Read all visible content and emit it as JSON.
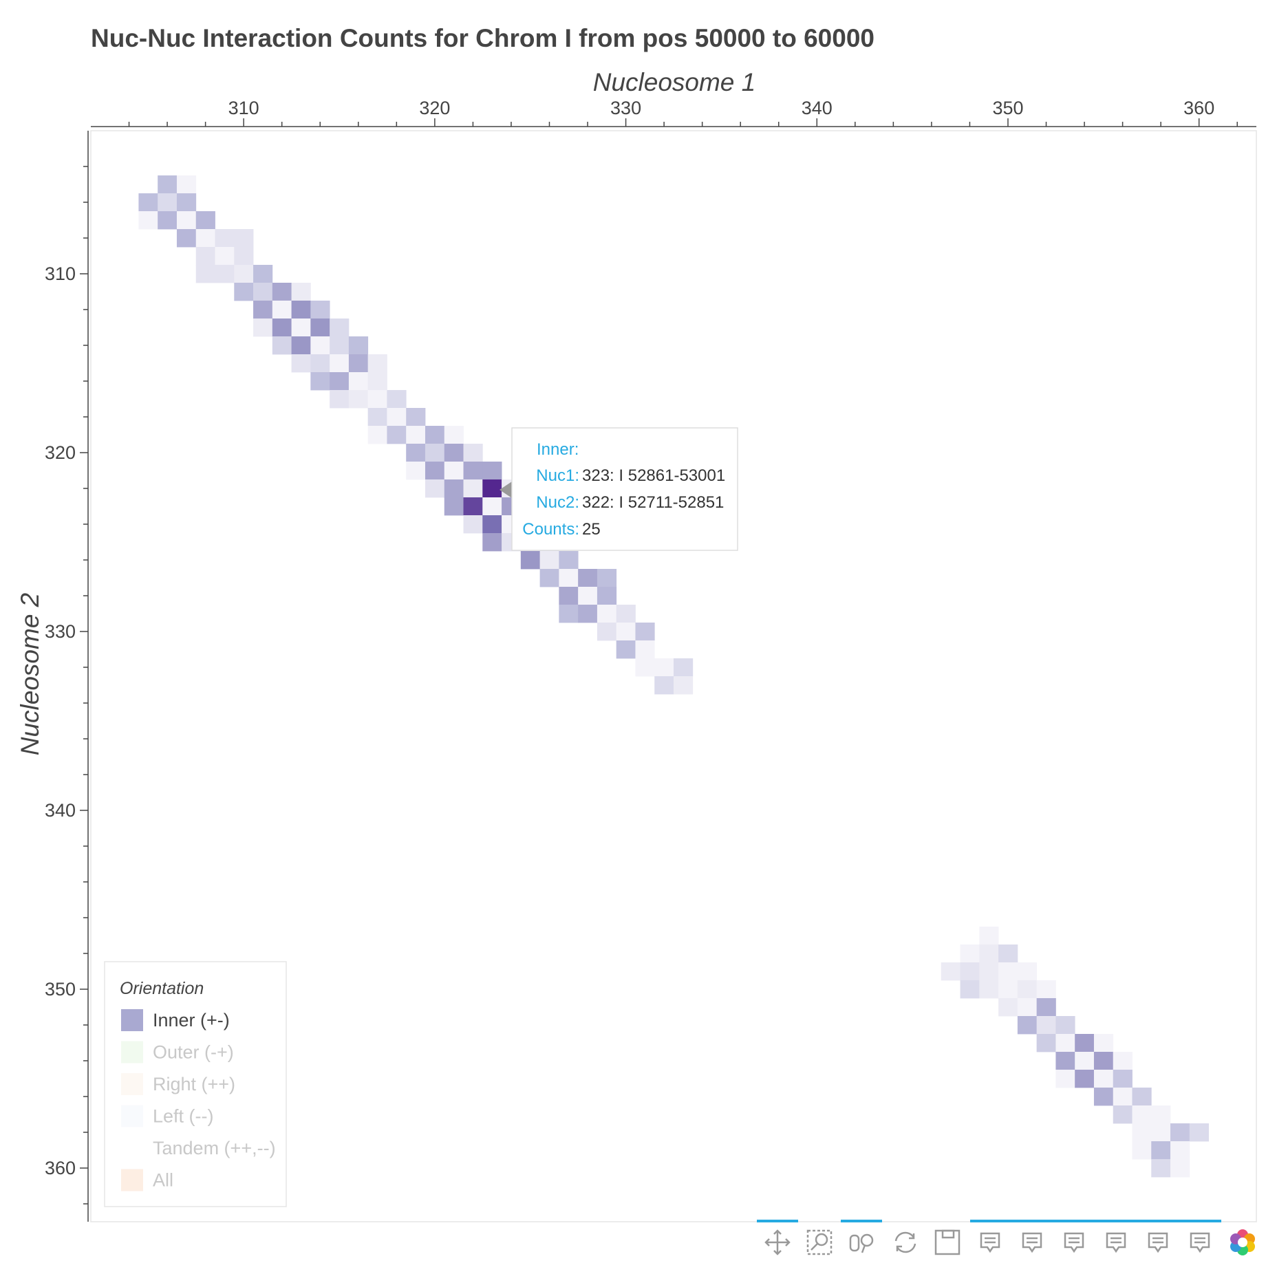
{
  "chart_data": {
    "type": "heatmap",
    "title": "Nuc-Nuc Interaction Counts for Chrom I from pos 50000 to 60000",
    "xlabel": "Nucleosome 1",
    "ylabel": "Nucleosome 2",
    "xlim": [
      302,
      363
    ],
    "ylim": [
      302,
      363
    ],
    "y_inverted": true,
    "x_axis_position": "top",
    "x_ticks": [
      "310",
      "320",
      "330",
      "340",
      "350",
      "360"
    ],
    "y_ticks": [
      "310",
      "320",
      "330",
      "340",
      "350",
      "360"
    ],
    "colormap": "purples",
    "max_count": 25,
    "cells": [
      [
        306,
        305,
        8
      ],
      [
        307,
        305,
        1
      ],
      [
        305,
        306,
        8
      ],
      [
        306,
        306,
        4
      ],
      [
        307,
        306,
        8
      ],
      [
        305,
        307,
        1
      ],
      [
        306,
        307,
        9
      ],
      [
        307,
        307,
        1
      ],
      [
        308,
        307,
        9
      ],
      [
        307,
        308,
        9
      ],
      [
        308,
        308,
        1
      ],
      [
        309,
        308,
        3
      ],
      [
        310,
        308,
        3
      ],
      [
        308,
        309,
        3
      ],
      [
        309,
        309,
        1
      ],
      [
        310,
        309,
        3
      ],
      [
        308,
        310,
        3
      ],
      [
        309,
        310,
        3
      ],
      [
        310,
        310,
        2
      ],
      [
        311,
        310,
        8
      ],
      [
        310,
        311,
        8
      ],
      [
        311,
        311,
        5
      ],
      [
        312,
        311,
        11
      ],
      [
        313,
        311,
        2
      ],
      [
        311,
        312,
        11
      ],
      [
        312,
        312,
        1
      ],
      [
        313,
        312,
        13
      ],
      [
        314,
        312,
        7
      ],
      [
        311,
        313,
        2
      ],
      [
        312,
        313,
        13
      ],
      [
        313,
        313,
        1
      ],
      [
        314,
        313,
        13
      ],
      [
        315,
        313,
        4
      ],
      [
        312,
        314,
        5
      ],
      [
        313,
        314,
        13
      ],
      [
        314,
        314,
        1
      ],
      [
        315,
        314,
        4
      ],
      [
        316,
        314,
        8
      ],
      [
        313,
        315,
        3
      ],
      [
        314,
        315,
        4
      ],
      [
        315,
        315,
        1
      ],
      [
        316,
        315,
        10
      ],
      [
        317,
        315,
        2
      ],
      [
        314,
        316,
        8
      ],
      [
        315,
        316,
        10
      ],
      [
        316,
        316,
        1
      ],
      [
        317,
        316,
        2
      ],
      [
        315,
        317,
        3
      ],
      [
        316,
        317,
        2
      ],
      [
        317,
        317,
        1
      ],
      [
        318,
        317,
        4
      ],
      [
        317,
        318,
        4
      ],
      [
        318,
        318,
        1
      ],
      [
        319,
        318,
        7
      ],
      [
        317,
        319,
        1
      ],
      [
        318,
        319,
        7
      ],
      [
        319,
        319,
        1
      ],
      [
        320,
        319,
        9
      ],
      [
        321,
        319,
        1
      ],
      [
        319,
        320,
        9
      ],
      [
        320,
        320,
        5
      ],
      [
        321,
        320,
        11
      ],
      [
        322,
        320,
        3
      ],
      [
        319,
        321,
        1
      ],
      [
        320,
        321,
        11
      ],
      [
        321,
        321,
        1
      ],
      [
        322,
        321,
        11
      ],
      [
        323,
        321,
        11
      ],
      [
        320,
        322,
        3
      ],
      [
        321,
        322,
        11
      ],
      [
        322,
        322,
        2
      ],
      [
        323,
        322,
        25
      ],
      [
        324,
        322,
        2
      ],
      [
        321,
        323,
        11
      ],
      [
        322,
        323,
        22
      ],
      [
        323,
        323,
        1
      ],
      [
        324,
        323,
        12
      ],
      [
        322,
        324,
        3
      ],
      [
        323,
        324,
        18
      ],
      [
        324,
        324,
        1
      ],
      [
        325,
        324,
        12
      ],
      [
        323,
        325,
        12
      ],
      [
        324,
        325,
        3
      ],
      [
        325,
        325,
        1
      ],
      [
        326,
        325,
        4
      ],
      [
        325,
        326,
        13
      ],
      [
        326,
        326,
        2
      ],
      [
        327,
        326,
        8
      ],
      [
        326,
        327,
        8
      ],
      [
        327,
        327,
        1
      ],
      [
        328,
        327,
        11
      ],
      [
        329,
        327,
        8
      ],
      [
        327,
        328,
        11
      ],
      [
        328,
        328,
        1
      ],
      [
        329,
        328,
        9
      ],
      [
        327,
        329,
        8
      ],
      [
        328,
        329,
        10
      ],
      [
        329,
        329,
        1
      ],
      [
        330,
        329,
        3
      ],
      [
        329,
        330,
        3
      ],
      [
        330,
        330,
        1
      ],
      [
        331,
        330,
        7
      ],
      [
        330,
        331,
        8
      ],
      [
        331,
        331,
        1
      ],
      [
        331,
        332,
        1
      ],
      [
        332,
        332,
        1
      ],
      [
        333,
        332,
        4
      ],
      [
        332,
        333,
        4
      ],
      [
        333,
        333,
        2
      ],
      [
        349,
        347,
        1
      ],
      [
        348,
        348,
        1
      ],
      [
        349,
        348,
        2
      ],
      [
        350,
        348,
        4
      ],
      [
        347,
        349,
        2
      ],
      [
        348,
        349,
        3
      ],
      [
        349,
        349,
        2
      ],
      [
        350,
        349,
        1
      ],
      [
        351,
        349,
        1
      ],
      [
        348,
        350,
        4
      ],
      [
        349,
        350,
        2
      ],
      [
        350,
        350,
        1
      ],
      [
        351,
        350,
        2
      ],
      [
        352,
        350,
        1
      ],
      [
        350,
        351,
        2
      ],
      [
        351,
        351,
        1
      ],
      [
        352,
        351,
        10
      ],
      [
        351,
        352,
        9
      ],
      [
        352,
        352,
        3
      ],
      [
        353,
        352,
        5
      ],
      [
        352,
        353,
        6
      ],
      [
        353,
        353,
        1
      ],
      [
        354,
        353,
        12
      ],
      [
        355,
        353,
        1
      ],
      [
        353,
        354,
        11
      ],
      [
        354,
        354,
        1
      ],
      [
        355,
        354,
        12
      ],
      [
        356,
        354,
        1
      ],
      [
        353,
        355,
        1
      ],
      [
        354,
        355,
        12
      ],
      [
        355,
        355,
        1
      ],
      [
        356,
        355,
        7
      ],
      [
        355,
        356,
        10
      ],
      [
        356,
        356,
        1
      ],
      [
        357,
        356,
        6
      ],
      [
        356,
        357,
        5
      ],
      [
        357,
        357,
        1
      ],
      [
        358,
        357,
        1
      ],
      [
        357,
        358,
        1
      ],
      [
        358,
        358,
        1
      ],
      [
        359,
        358,
        7
      ],
      [
        360,
        358,
        4
      ],
      [
        357,
        359,
        1
      ],
      [
        358,
        359,
        8
      ],
      [
        359,
        359,
        1
      ],
      [
        358,
        360,
        4
      ],
      [
        359,
        360,
        1
      ]
    ],
    "legend": {
      "title": "Orientation",
      "placement": "bottom-left",
      "items": [
        {
          "label": "Inner (+-)",
          "color": "#a9a9d1",
          "muted": false
        },
        {
          "label": "Outer (-+)",
          "color": "#f1faef",
          "muted": true
        },
        {
          "label": "Right (++)",
          "color": "#fdf8f3",
          "muted": true
        },
        {
          "label": "Left (--)",
          "color": "#f8fafd",
          "muted": true
        },
        {
          "label": "Tandem (++,--)",
          "color": "#ffffff",
          "muted": true
        },
        {
          "label": "All",
          "color": "#fdeee3",
          "muted": true
        }
      ]
    },
    "tooltip": {
      "heading": "Inner:",
      "rows": [
        {
          "label": "Nuc1:",
          "value": "323: I 52861-53001"
        },
        {
          "label": "Nuc2:",
          "value": "322: I 52711-52851"
        },
        {
          "label": "Counts:",
          "value": "25"
        }
      ]
    }
  },
  "toolbar": {
    "tools": [
      "pan-icon",
      "box-zoom-icon",
      "wheel-zoom-icon",
      "reset-icon",
      "save-icon",
      "hover-icon",
      "hover-icon",
      "hover-icon",
      "hover-icon",
      "hover-icon",
      "hover-icon",
      "bokeh-logo"
    ],
    "active_color": "#26aae1"
  }
}
